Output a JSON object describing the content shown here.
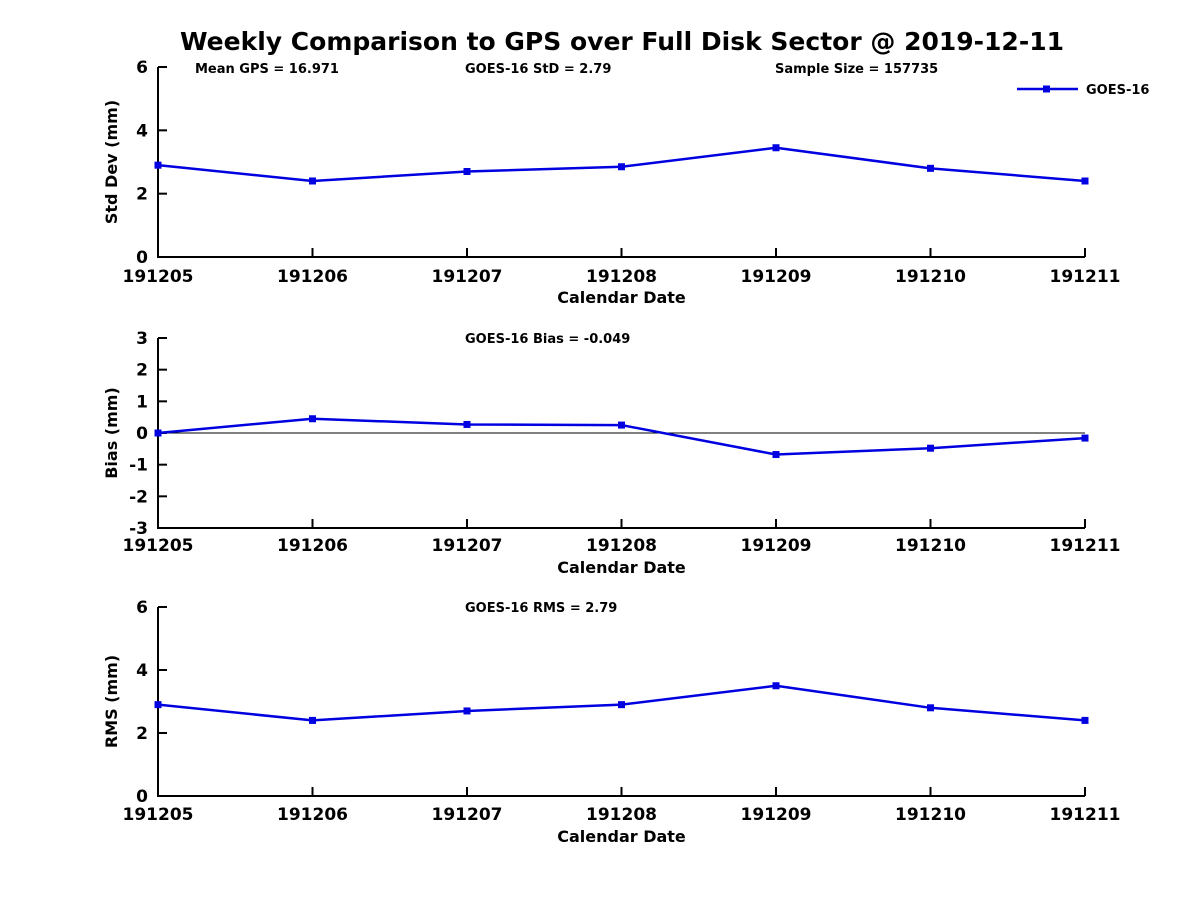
{
  "title": "Weekly Comparison to GPS over Full Disk Sector @ 2019-12-11",
  "legend": {
    "label": "GOES-16"
  },
  "colors": {
    "series": "#0000e0",
    "axis": "#000000",
    "zero_line": "#000000",
    "background": "#ffffff"
  },
  "chart_data": [
    {
      "type": "line",
      "panel": "top",
      "annotations": [
        "Mean GPS = 16.971",
        "GOES-16 StD = 2.79",
        "Sample Size = 157735"
      ],
      "xlabel": "Calendar Date",
      "ylabel": "Std Dev (mm)",
      "categories": [
        "191205",
        "191206",
        "191207",
        "191208",
        "191209",
        "191210",
        "191211"
      ],
      "series": [
        {
          "name": "GOES-16",
          "values": [
            2.9,
            2.4,
            2.7,
            2.85,
            3.45,
            2.8,
            2.4
          ]
        }
      ],
      "ylim": [
        0,
        6
      ],
      "yticks": [
        0,
        2,
        4,
        6
      ],
      "grid": false,
      "zero_line": false,
      "legend_position": "outside-top-right"
    },
    {
      "type": "line",
      "panel": "middle",
      "annotations": [
        "GOES-16 Bias  = -0.049"
      ],
      "xlabel": "Calendar Date",
      "ylabel": "Bias (mm)",
      "categories": [
        "191205",
        "191206",
        "191207",
        "191208",
        "191209",
        "191210",
        "191211"
      ],
      "series": [
        {
          "name": "GOES-16",
          "values": [
            0.0,
            0.45,
            0.27,
            0.25,
            -0.68,
            -0.48,
            -0.16
          ]
        }
      ],
      "ylim": [
        -3,
        3
      ],
      "yticks": [
        -3,
        -2,
        -1,
        0,
        1,
        2,
        3
      ],
      "grid": false,
      "zero_line": true
    },
    {
      "type": "line",
      "panel": "bottom",
      "annotations": [
        "GOES-16 RMS = 2.79"
      ],
      "xlabel": "Calendar Date",
      "ylabel": "RMS (mm)",
      "categories": [
        "191205",
        "191206",
        "191207",
        "191208",
        "191209",
        "191210",
        "191211"
      ],
      "series": [
        {
          "name": "GOES-16",
          "values": [
            2.9,
            2.4,
            2.7,
            2.9,
            3.5,
            2.8,
            2.4
          ]
        }
      ],
      "ylim": [
        0,
        6
      ],
      "yticks": [
        0,
        2,
        4,
        6
      ],
      "grid": false,
      "zero_line": false
    }
  ]
}
